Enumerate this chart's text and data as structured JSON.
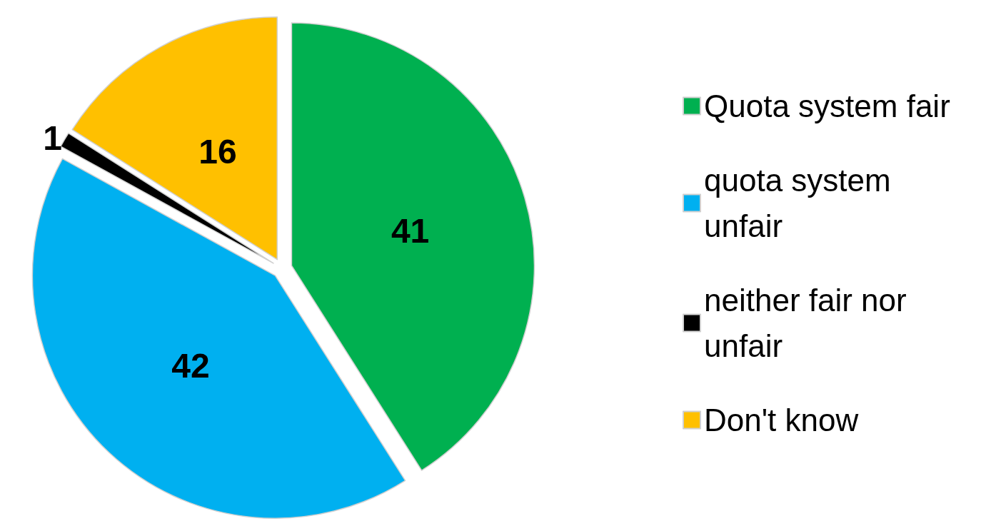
{
  "chart_data": {
    "type": "pie",
    "categories": [
      "Quota system fair",
      "quota system unfair",
      "neither fair nor unfair",
      "Don't know"
    ],
    "values": [
      41,
      42,
      1,
      16
    ],
    "colors": [
      "#00b050",
      "#00b0f0",
      "#000000",
      "#ffc000"
    ],
    "data_labels": true,
    "legend": "right"
  }
}
